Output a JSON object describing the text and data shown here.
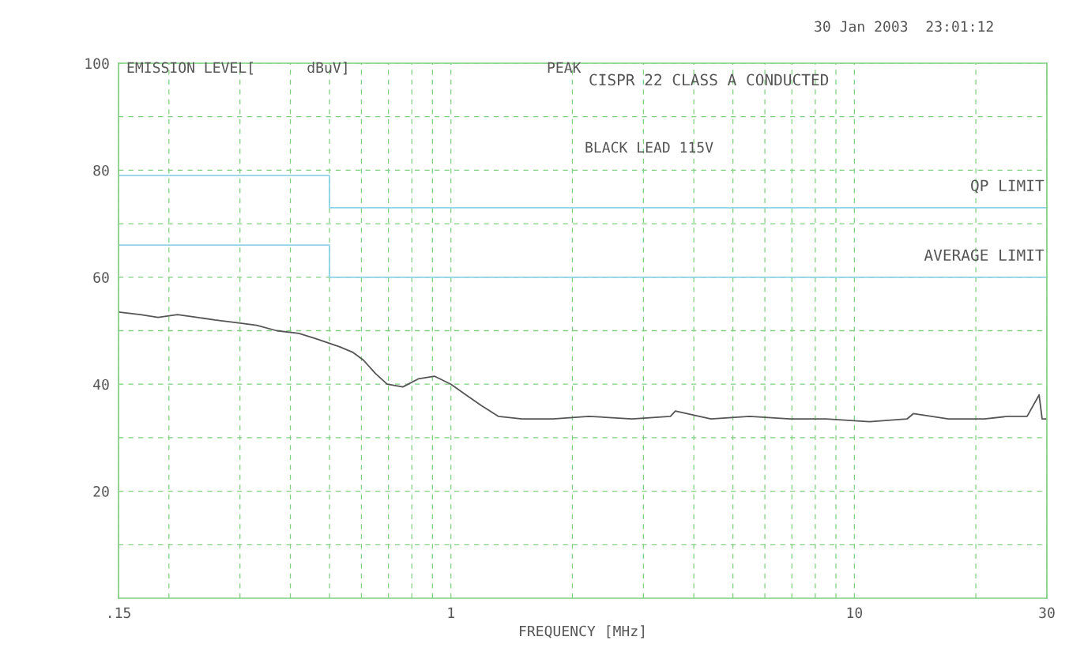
{
  "chart_data": {
    "type": "line",
    "xlabel": "FREQUENCY [MHz]",
    "ylabel": "EMISSION LEVEL[      dBuV]",
    "annotations": [
      "PEAK",
      "30 Jan 2003  23:01:12",
      "CISPR 22 CLASS A CONDUCTED",
      "BLACK LEAD 115V"
    ],
    "log": "x",
    "grid": true,
    "line_style": "solid",
    "xlim": [
      0.15,
      30
    ],
    "ylim": [
      0,
      100
    ],
    "xticks": [
      {
        "value": 0.15,
        "label": ".15"
      },
      {
        "value": 0.2,
        "label": null
      },
      {
        "value": 0.3,
        "label": null
      },
      {
        "value": 0.4,
        "label": null
      },
      {
        "value": 0.5,
        "label": null
      },
      {
        "value": 0.6,
        "label": null
      },
      {
        "value": 0.7,
        "label": null
      },
      {
        "value": 0.8,
        "label": null
      },
      {
        "value": 0.9,
        "label": null
      },
      1,
      {
        "value": 2,
        "label": null
      },
      {
        "value": 3,
        "label": null
      },
      {
        "value": 4,
        "label": null
      },
      {
        "value": 5,
        "label": null
      },
      {
        "value": 6,
        "label": null
      },
      {
        "value": 7,
        "label": null
      },
      {
        "value": 8,
        "label": null
      },
      {
        "value": 9,
        "label": null
      },
      10,
      {
        "value": 20,
        "label": null
      },
      30
    ],
    "yticks": [
      {
        "value": 10,
        "label": null
      },
      20,
      {
        "value": 30,
        "label": null
      },
      40,
      {
        "value": 50,
        "label": null
      },
      60,
      {
        "value": 70,
        "label": null
      },
      80,
      {
        "value": 90,
        "label": null
      },
      100
    ],
    "series": [
      {
        "name": "QP LIMIT",
        "type": "step",
        "color": "#8fd3e8",
        "x": [
          0.15,
          0.5,
          30
        ],
        "values": [
          79,
          73,
          73
        ]
      },
      {
        "name": "AVERAGE LIMIT",
        "type": "step",
        "color": "#8fd3e8",
        "x": [
          0.15,
          0.5,
          30
        ],
        "values": [
          66,
          60,
          60
        ]
      },
      {
        "color": "#555555",
        "x": [
          0.15,
          0.17,
          0.188,
          0.21,
          0.235,
          0.26,
          0.295,
          0.33,
          0.37,
          0.42,
          0.463,
          0.53,
          0.57,
          0.607,
          0.65,
          0.695,
          0.76,
          0.83,
          0.91,
          1.0,
          1.09,
          1.19,
          1.31,
          1.5,
          1.79,
          2.2,
          2.81,
          3.5,
          3.6,
          4.41,
          5.5,
          6.93,
          8.5,
          10.9,
          13.5,
          14,
          17.1,
          21,
          24,
          26.8,
          28.7,
          29.2,
          30
        ],
        "values": [
          53.5,
          53,
          52.5,
          53,
          52.5,
          52,
          51.5,
          51,
          50,
          49.5,
          48.5,
          47,
          46,
          44.5,
          42,
          40,
          39.5,
          41,
          41.5,
          40,
          38,
          36,
          34,
          33.5,
          33.5,
          34,
          33.5,
          34,
          35,
          33.5,
          34,
          33.5,
          33.5,
          33,
          33.5,
          34.5,
          33.5,
          33.5,
          34,
          34,
          38,
          33.5,
          33.5
        ]
      }
    ]
  }
}
